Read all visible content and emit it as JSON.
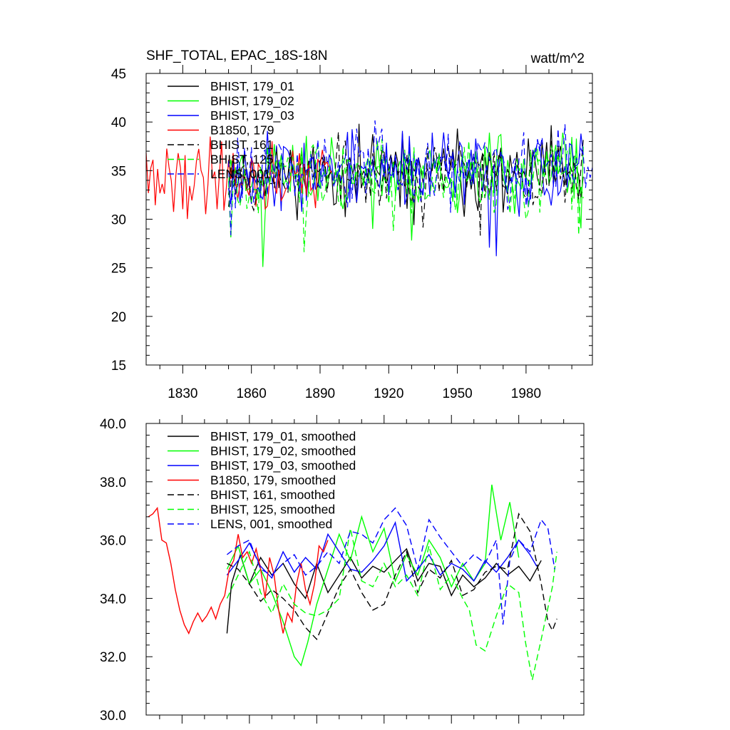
{
  "chart_data": [
    {
      "type": "line",
      "title": "SHF_TOTAL, EPAC_18S-18N",
      "units": "watt/m^2",
      "xlabel": "",
      "ylabel": "",
      "xlim": [
        1814,
        2009
      ],
      "ylim": [
        15,
        45
      ],
      "xticks": [
        1830,
        1860,
        1890,
        1920,
        1950,
        1980
      ],
      "xtick_labels": [
        "1830",
        "1860",
        "1890",
        "1920",
        "1950",
        "1980"
      ],
      "yticks": [
        15,
        20,
        25,
        30,
        35,
        40,
        45
      ],
      "ytick_labels": [
        "15",
        "20",
        "25",
        "30",
        "35",
        "40",
        "45"
      ],
      "legend_position": "top-left",
      "series": [
        {
          "name": "BHIST, 179_01",
          "color": "#000000",
          "dash": "solid",
          "x_start": 1850,
          "x_end": 2005,
          "mean": 34.8,
          "amp": 2.6,
          "seed": 11
        },
        {
          "name": "BHIST, 179_02",
          "color": "#00ff00",
          "dash": "solid",
          "x_start": 1850,
          "x_end": 2005,
          "mean": 35.0,
          "amp": 2.8,
          "seed": 23
        },
        {
          "name": "BHIST, 179_03",
          "color": "#0000ff",
          "dash": "solid",
          "x_start": 1850,
          "x_end": 2005,
          "mean": 35.0,
          "amp": 2.8,
          "seed": 37
        },
        {
          "name": "B1850, 179",
          "color": "#ff0000",
          "dash": "solid",
          "x_start": 1814,
          "x_end": 1895,
          "mean": 34.5,
          "amp": 2.6,
          "seed": 41
        },
        {
          "name": "BHIST, 161",
          "color": "#000000",
          "dash": "dashed",
          "x_start": 1850,
          "x_end": 2005,
          "mean": 34.8,
          "amp": 2.4,
          "seed": 53
        },
        {
          "name": "BHIST, 125",
          "color": "#00ff00",
          "dash": "dashed",
          "x_start": 1850,
          "x_end": 2005,
          "mean": 34.6,
          "amp": 2.6,
          "seed": 67
        },
        {
          "name": "LENS, 001",
          "color": "#0000ff",
          "dash": "dashed",
          "x_start": 1850,
          "x_end": 2009,
          "mean": 35.5,
          "amp": 3.0,
          "seed": 79
        }
      ]
    },
    {
      "type": "line",
      "title": "",
      "xlabel": "",
      "ylabel": "",
      "xlim": [
        1814,
        2009
      ],
      "ylim": [
        30.0,
        40.0
      ],
      "xticks": [
        1830,
        1860,
        1890,
        1920,
        1950,
        1980
      ],
      "yticks": [
        30.0,
        32.0,
        34.0,
        36.0,
        38.0,
        40.0
      ],
      "ytick_labels": [
        "30.0",
        "32.0",
        "34.0",
        "36.0",
        "38.0",
        "40.0"
      ],
      "legend_position": "top-left",
      "series": [
        {
          "name": "BHIST, 179_01, smoothed",
          "color": "#000000",
          "dash": "solid",
          "x": [
            1850,
            1852,
            1856,
            1860,
            1865,
            1870,
            1875,
            1880,
            1885,
            1890,
            1895,
            1900,
            1905,
            1910,
            1915,
            1920,
            1925,
            1930,
            1935,
            1940,
            1945,
            1950,
            1955,
            1960,
            1965,
            1970,
            1975,
            1980,
            1985,
            1990
          ],
          "y": [
            32.8,
            34.5,
            35.5,
            34.5,
            35.4,
            34.8,
            35.2,
            34.5,
            34.0,
            35.2,
            34.2,
            34.8,
            35.4,
            34.7,
            35.1,
            34.9,
            35.3,
            35.7,
            34.6,
            35.2,
            35.1,
            34.1,
            34.8,
            34.4,
            34.7,
            35.2,
            34.8,
            35.1,
            34.6,
            35.3
          ]
        },
        {
          "name": "BHIST, 179_02, smoothed",
          "color": "#00ff00",
          "dash": "solid",
          "x": [
            1850,
            1855,
            1860,
            1865,
            1870,
            1875,
            1880,
            1883,
            1886,
            1890,
            1895,
            1900,
            1905,
            1910,
            1915,
            1920,
            1925,
            1930,
            1935,
            1940,
            1945,
            1950,
            1955,
            1960,
            1965,
            1968,
            1972,
            1976,
            1980
          ],
          "y": [
            35.0,
            35.8,
            34.5,
            35.0,
            34.2,
            33.2,
            32.0,
            31.7,
            32.5,
            33.8,
            35.0,
            36.2,
            35.3,
            36.8,
            35.6,
            36.4,
            34.6,
            35.5,
            34.8,
            36.0,
            35.4,
            34.4,
            35.2,
            34.6,
            35.2,
            37.9,
            36.0,
            37.3,
            35.4
          ]
        },
        {
          "name": "BHIST, 179_03, smoothed",
          "color": "#0000ff",
          "dash": "solid",
          "x": [
            1850,
            1855,
            1860,
            1865,
            1870,
            1875,
            1880,
            1885,
            1890,
            1895,
            1900,
            1905,
            1910,
            1915,
            1920,
            1925,
            1930,
            1935,
            1940,
            1945,
            1950,
            1955,
            1960,
            1965,
            1970,
            1975,
            1980,
            1985,
            1988
          ],
          "y": [
            34.8,
            35.3,
            35.9,
            35.1,
            34.7,
            35.6,
            34.9,
            35.4,
            35.0,
            36.2,
            35.6,
            35.0,
            34.9,
            35.3,
            35.8,
            36.6,
            34.6,
            35.0,
            35.5,
            34.8,
            35.2,
            35.0,
            34.6,
            35.3,
            34.9,
            35.4,
            36.0,
            35.5,
            35.1
          ]
        },
        {
          "name": "B1850, 179, smoothed",
          "color": "#ff0000",
          "dash": "solid",
          "x": [
            1815,
            1817,
            1819,
            1821,
            1823,
            1825,
            1827,
            1829,
            1831,
            1833,
            1835,
            1837,
            1839,
            1841,
            1843,
            1845,
            1847,
            1849,
            1851,
            1853,
            1855,
            1857,
            1859,
            1861,
            1863,
            1865,
            1867,
            1869,
            1871,
            1873,
            1875,
            1877,
            1879,
            1881,
            1883,
            1885,
            1887,
            1889,
            1891,
            1893,
            1895
          ],
          "y": [
            36.8,
            36.9,
            37.1,
            36.0,
            35.9,
            35.2,
            34.3,
            33.6,
            33.1,
            32.8,
            33.2,
            33.5,
            33.2,
            33.4,
            33.7,
            33.3,
            33.8,
            34.1,
            35.0,
            35.3,
            36.2,
            35.4,
            35.6,
            35.2,
            35.7,
            35.0,
            34.0,
            35.4,
            34.8,
            33.6,
            32.8,
            33.5,
            33.2,
            34.5,
            35.2,
            34.3,
            33.8,
            34.5,
            35.8,
            35.6,
            36.0
          ]
        },
        {
          "name": "BHIST, 161, smoothed",
          "color": "#000000",
          "dash": "dashed",
          "x": [
            1850,
            1855,
            1860,
            1865,
            1870,
            1875,
            1880,
            1885,
            1890,
            1895,
            1900,
            1905,
            1910,
            1915,
            1920,
            1925,
            1930,
            1935,
            1940,
            1945,
            1950,
            1955,
            1960,
            1965,
            1970,
            1975,
            1980,
            1985,
            1990,
            1993,
            1995,
            1997
          ],
          "y": [
            35.2,
            35.0,
            34.5,
            33.9,
            34.3,
            34.0,
            33.6,
            33.0,
            32.6,
            33.5,
            34.4,
            35.0,
            34.2,
            33.6,
            33.8,
            34.8,
            35.6,
            34.2,
            35.0,
            34.7,
            35.3,
            34.1,
            34.3,
            34.9,
            35.1,
            35.0,
            36.9,
            36.3,
            34.5,
            33.2,
            32.9,
            33.3
          ]
        },
        {
          "name": "BHIST, 125, smoothed",
          "color": "#00ff00",
          "dash": "dashed",
          "x": [
            1850,
            1855,
            1860,
            1865,
            1870,
            1875,
            1880,
            1885,
            1890,
            1895,
            1900,
            1905,
            1910,
            1915,
            1920,
            1925,
            1930,
            1935,
            1940,
            1945,
            1950,
            1955,
            1958,
            1961,
            1965,
            1970,
            1975,
            1980,
            1983,
            1986,
            1990,
            1995,
            1997
          ],
          "y": [
            34.0,
            34.8,
            35.6,
            34.2,
            33.5,
            34.5,
            33.8,
            33.5,
            33.4,
            33.6,
            34.0,
            36.4,
            34.6,
            34.4,
            35.2,
            34.4,
            34.8,
            34.1,
            35.8,
            34.3,
            34.8,
            34.0,
            33.6,
            32.4,
            32.2,
            33.4,
            34.5,
            34.2,
            32.5,
            31.2,
            32.6,
            34.4,
            35.6
          ]
        },
        {
          "name": "LENS, 001, smoothed",
          "color": "#0000ff",
          "dash": "dashed",
          "x": [
            1850,
            1855,
            1860,
            1865,
            1870,
            1875,
            1880,
            1885,
            1890,
            1895,
            1900,
            1905,
            1910,
            1915,
            1920,
            1925,
            1930,
            1935,
            1940,
            1945,
            1950,
            1955,
            1960,
            1965,
            1970,
            1973,
            1976,
            1980,
            1985,
            1990,
            1993,
            1996
          ],
          "y": [
            35.5,
            35.8,
            36.0,
            35.0,
            34.8,
            35.2,
            35.5,
            34.8,
            35.1,
            35.6,
            35.2,
            36.3,
            36.2,
            35.9,
            36.7,
            37.1,
            36.5,
            35.0,
            36.7,
            36.1,
            35.6,
            35.1,
            35.5,
            35.2,
            36.0,
            33.1,
            35.3,
            36.0,
            35.6,
            36.7,
            36.4,
            35.0
          ]
        }
      ]
    }
  ]
}
